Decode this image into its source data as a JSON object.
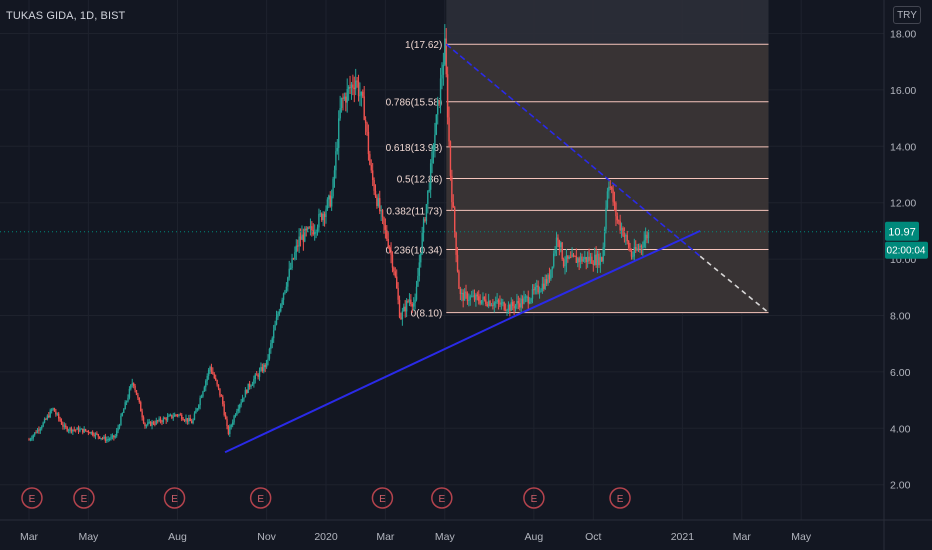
{
  "header": {
    "title": "TUKAS GIDA, 1D, BIST",
    "currency_button": "TRY"
  },
  "last_price": {
    "value_label": "10.97",
    "countdown": "02:00:04"
  },
  "colors": {
    "background": "#131722",
    "grid": "#1e222d",
    "up": "#26a69a",
    "down": "#ef5350",
    "trendline": "#2a2ae8",
    "fib_line": "#f5c4bb",
    "fib_fill": "#3a3536",
    "price_tag": "#00897b",
    "event_marker": "#b4434d"
  },
  "event_marker_label": "E",
  "chart_data": {
    "type": "candlestick",
    "title": "TUKAS GIDA, 1D, BIST",
    "xlabel": "",
    "ylabel": "",
    "ylim": [
      1.5,
      19.1
    ],
    "y_ticks": [
      "2.00",
      "4.00",
      "6.00",
      "8.00",
      "10.00",
      "12.00",
      "14.00",
      "16.00",
      "18.00"
    ],
    "x_ticks": [
      "Mar",
      "May",
      "Aug",
      "Nov",
      "2020",
      "Mar",
      "May",
      "Aug",
      "Oct",
      "2021",
      "Mar",
      "May"
    ],
    "x_tick_months": [
      0,
      2,
      5,
      8,
      10,
      12,
      14,
      17,
      19,
      22,
      24,
      26
    ],
    "price_path": [
      [
        0.0,
        3.6
      ],
      [
        0.5,
        4.2
      ],
      [
        0.8,
        4.7
      ],
      [
        1.2,
        4.0
      ],
      [
        2.0,
        3.9
      ],
      [
        2.6,
        3.6
      ],
      [
        2.9,
        3.7
      ],
      [
        3.5,
        5.7
      ],
      [
        3.9,
        4.1
      ],
      [
        4.5,
        4.3
      ],
      [
        5.0,
        4.5
      ],
      [
        5.5,
        4.2
      ],
      [
        6.1,
        6.2
      ],
      [
        6.5,
        5.0
      ],
      [
        6.7,
        3.8
      ],
      [
        7.0,
        4.7
      ],
      [
        7.4,
        5.5
      ],
      [
        8.0,
        6.3
      ],
      [
        8.5,
        8.6
      ],
      [
        9.1,
        10.7
      ],
      [
        9.6,
        11.1
      ],
      [
        10.2,
        12.2
      ],
      [
        10.5,
        15.5
      ],
      [
        11.0,
        16.4
      ],
      [
        11.3,
        15.2
      ],
      [
        11.5,
        13.1
      ],
      [
        11.9,
        11.3
      ],
      [
        12.1,
        10.6
      ],
      [
        12.3,
        9.6
      ],
      [
        12.5,
        7.9
      ],
      [
        12.8,
        8.6
      ],
      [
        13.0,
        8.4
      ],
      [
        13.2,
        10.5
      ],
      [
        13.5,
        12.9
      ],
      [
        13.8,
        15.7
      ],
      [
        14.0,
        17.5
      ],
      [
        14.2,
        12.8
      ],
      [
        14.5,
        8.7
      ],
      [
        15.0,
        8.6
      ],
      [
        15.5,
        8.5
      ],
      [
        16.2,
        8.3
      ],
      [
        16.8,
        8.6
      ],
      [
        17.2,
        9.0
      ],
      [
        17.5,
        9.3
      ],
      [
        17.8,
        10.9
      ],
      [
        18.0,
        9.9
      ],
      [
        18.5,
        10.0
      ],
      [
        19.0,
        10.0
      ],
      [
        19.3,
        10.0
      ],
      [
        19.5,
        12.9
      ],
      [
        19.8,
        11.4
      ],
      [
        20.0,
        11.0
      ],
      [
        20.3,
        10.1
      ],
      [
        20.6,
        10.5
      ],
      [
        20.9,
        11.0
      ]
    ],
    "volatility": 0.35,
    "last_value": 10.97,
    "fibonacci": {
      "levels": [
        {
          "ratio": "1",
          "price": 17.62,
          "label": "1(17.62)"
        },
        {
          "ratio": "0.786",
          "price": 15.58,
          "label": "0.786(15.58)"
        },
        {
          "ratio": "0.618",
          "price": 13.98,
          "label": "0.618(13.98)"
        },
        {
          "ratio": "0.5",
          "price": 12.86,
          "label": "0.5(12.86)"
        },
        {
          "ratio": "0.382",
          "price": 11.73,
          "label": "0.382(11.73)"
        },
        {
          "ratio": "0.236",
          "price": 10.34,
          "label": "0.236(10.34)"
        },
        {
          "ratio": "0",
          "price": 8.1,
          "label": "0(8.10)"
        }
      ],
      "start_month": 14.05,
      "end_month": 24.9
    },
    "trendlines": [
      {
        "style": "solid",
        "from": [
          6.6,
          3.15
        ],
        "to": [
          16.6,
          8.1
        ]
      },
      {
        "style": "solid",
        "from": [
          16.6,
          8.1
        ],
        "to": [
          22.6,
          11.0
        ]
      },
      {
        "style": "solid",
        "from": [
          14.05,
          17.62
        ],
        "to": [
          22.6,
          10.1
        ]
      },
      {
        "style": "dashed",
        "from": [
          22.6,
          10.1
        ],
        "to": [
          24.9,
          8.1
        ]
      }
    ],
    "event_months": [
      0.1,
      1.85,
      4.9,
      7.8,
      11.9,
      13.9,
      17.0,
      19.9
    ]
  }
}
